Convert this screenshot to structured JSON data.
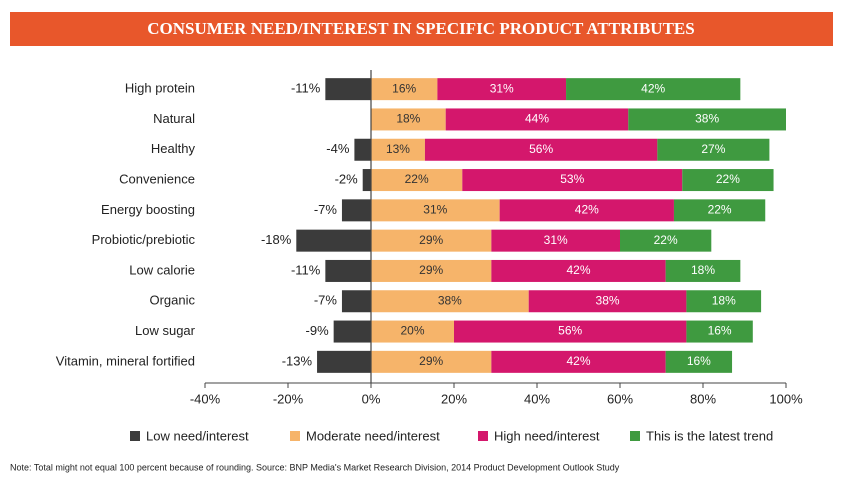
{
  "chart_data": {
    "type": "diverging_stacked_bar",
    "title": "CONSUMER NEED/INTEREST IN SPECIFIC PRODUCT ATTRIBUTES",
    "categories": [
      "High protein",
      "Natural",
      "Healthy",
      "Convenience",
      "Energy boosting",
      "Probiotic/prebiotic",
      "Low calorie",
      "Organic",
      "Low sugar",
      "Vitamin, mineral fortified"
    ],
    "series": [
      {
        "name": "Low need/interest",
        "color": "#3b3b3b",
        "values": [
          -11,
          null,
          -4,
          -2,
          -7,
          -18,
          -11,
          -7,
          -9,
          -13
        ],
        "value_labels": [
          "-11%",
          null,
          "-4%",
          "-2%",
          "-7%",
          "-18%",
          "-11%",
          "-7%",
          "-9%",
          "-13%"
        ]
      },
      {
        "name": "Moderate need/interest",
        "color": "#f6b46a",
        "values": [
          16,
          18,
          13,
          22,
          31,
          29,
          29,
          38,
          20,
          29
        ],
        "value_labels": [
          "16%",
          "18%",
          "13%",
          "22%",
          "31%",
          "29%",
          "29%",
          "38%",
          "20%",
          "29%"
        ]
      },
      {
        "name": "High need/interest",
        "color": "#d4176c",
        "values": [
          31,
          44,
          56,
          53,
          42,
          31,
          42,
          38,
          56,
          42
        ],
        "value_labels": [
          "31%",
          "44%",
          "56%",
          "53%",
          "42%",
          "31%",
          "42%",
          "38%",
          "56%",
          "42%"
        ]
      },
      {
        "name": "This is the latest trend",
        "color": "#3f9a40",
        "values": [
          42,
          38,
          27,
          22,
          22,
          22,
          18,
          18,
          16,
          16
        ],
        "value_labels": [
          "42%",
          "38%",
          "27%",
          "22%",
          "22%",
          "22%",
          "18%",
          "18%",
          "16%",
          "16%"
        ]
      }
    ],
    "xlim": [
      -40,
      100
    ],
    "xticks": [
      {
        "value": -40,
        "label": "-40%"
      },
      {
        "value": -20,
        "label": "-20%"
      },
      {
        "value": 0,
        "label": "0%"
      },
      {
        "value": 20,
        "label": "20%"
      },
      {
        "value": 40,
        "label": "40%"
      },
      {
        "value": 60,
        "label": "60%"
      },
      {
        "value": 80,
        "label": "80%"
      },
      {
        "value": 100,
        "label": "100%"
      }
    ],
    "note": "Note: Total might not equal 100 percent because of rounding. Source: BNP Media's Market Research Division, 2014 Product Development Outlook Study"
  }
}
